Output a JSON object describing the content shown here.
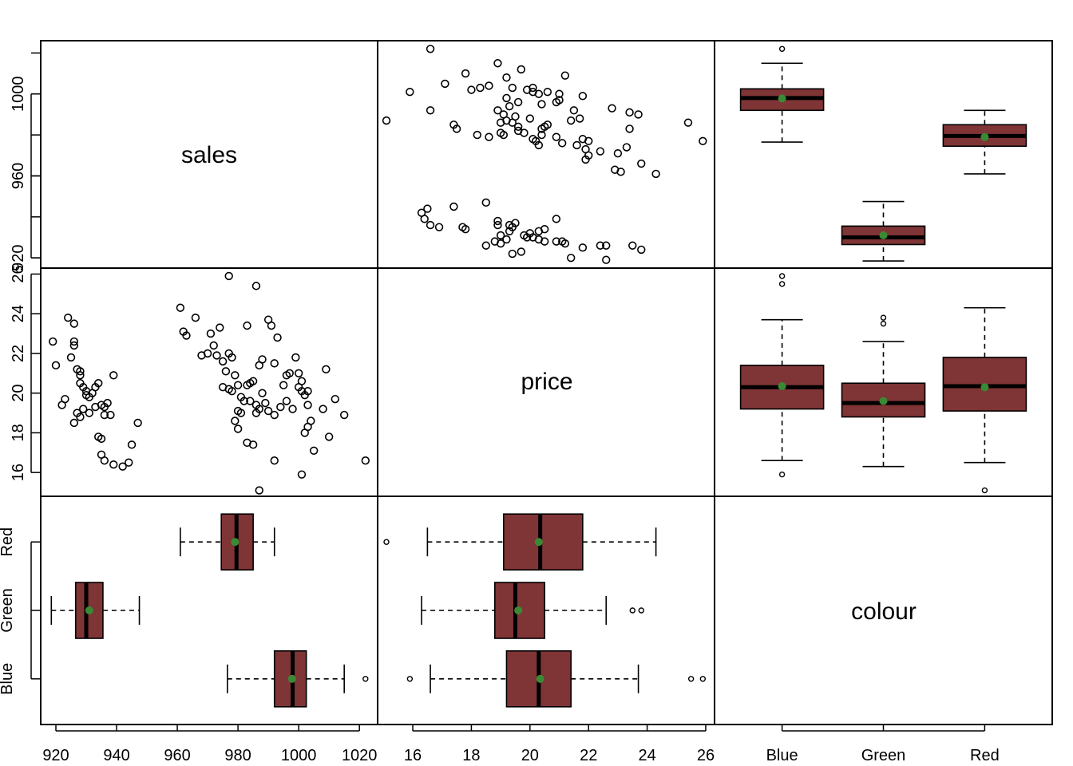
{
  "chart_data": {
    "type": "scatter",
    "variables": [
      "sales",
      "price",
      "colour"
    ],
    "categories": [
      "Blue",
      "Green",
      "Red"
    ],
    "colors": {
      "box_fill": "#7f3436",
      "mean_point": "#3a8a34",
      "points": "#000000"
    },
    "axes": {
      "sales": {
        "range": [
          915,
          1026
        ],
        "ticks": [
          920,
          940,
          960,
          980,
          1000,
          1020
        ],
        "alt_ticks": [
          920,
          960,
          1000
        ]
      },
      "price": {
        "range": [
          14.8,
          26.3
        ],
        "ticks": [
          16,
          18,
          20,
          22,
          24,
          26
        ]
      }
    },
    "boxplots": {
      "sales": [
        {
          "group": "Blue",
          "whisker_low": 976.5,
          "q1": 992,
          "median": 998,
          "q3": 1002.5,
          "whisker_high": 1015,
          "mean": 997.8,
          "outliers": [
            1022
          ]
        },
        {
          "group": "Green",
          "whisker_low": 918.5,
          "q1": 926.5,
          "median": 930,
          "q3": 935.5,
          "whisker_high": 947.5,
          "mean": 931,
          "outliers": []
        },
        {
          "group": "Red",
          "whisker_low": 961,
          "q1": 974.5,
          "median": 979.5,
          "q3": 985,
          "whisker_high": 992,
          "mean": 979,
          "outliers": []
        }
      ],
      "price": [
        {
          "group": "Blue",
          "whisker_low": 16.6,
          "q1": 19.2,
          "median": 20.3,
          "q3": 21.4,
          "whisker_high": 23.7,
          "mean": 20.35,
          "outliers": [
            15.9,
            25.5,
            25.9
          ]
        },
        {
          "group": "Green",
          "whisker_low": 16.3,
          "q1": 18.8,
          "median": 19.5,
          "q3": 20.5,
          "whisker_high": 22.6,
          "mean": 19.6,
          "outliers": [
            23.5,
            23.8
          ]
        },
        {
          "group": "Red",
          "whisker_low": 16.5,
          "q1": 19.1,
          "median": 20.35,
          "q3": 21.8,
          "whisker_high": 24.3,
          "mean": 20.3,
          "outliers": [
            15.1
          ]
        }
      ]
    },
    "scatter_points": [
      {
        "sales": 1022,
        "price": 16.6
      },
      {
        "sales": 1001,
        "price": 15.9
      },
      {
        "sales": 1005,
        "price": 17.1
      },
      {
        "sales": 1012,
        "price": 19.7
      },
      {
        "sales": 1015,
        "price": 18.9
      },
      {
        "sales": 1009,
        "price": 21.2
      },
      {
        "sales": 1010,
        "price": 17.8
      },
      {
        "sales": 1008,
        "price": 19.2
      },
      {
        "sales": 1003,
        "price": 19.4
      },
      {
        "sales": 1004,
        "price": 18.6
      },
      {
        "sales": 986,
        "price": 25.4
      },
      {
        "sales": 977,
        "price": 25.9
      },
      {
        "sales": 997,
        "price": 21.0
      },
      {
        "sales": 999,
        "price": 21.8
      },
      {
        "sales": 996,
        "price": 20.9
      },
      {
        "sales": 993,
        "price": 22.8
      },
      {
        "sales": 991,
        "price": 23.4
      },
      {
        "sales": 990,
        "price": 23.7
      },
      {
        "sales": 992,
        "price": 21.5
      },
      {
        "sales": 995,
        "price": 20.4
      },
      {
        "sales": 1000,
        "price": 20.3
      },
      {
        "sales": 1001,
        "price": 20.1
      },
      {
        "sales": 1002,
        "price": 19.9
      },
      {
        "sales": 998,
        "price": 19.2
      },
      {
        "sales": 996,
        "price": 19.6
      },
      {
        "sales": 994,
        "price": 19.3
      },
      {
        "sales": 992,
        "price": 18.9
      },
      {
        "sales": 1002,
        "price": 18.0
      },
      {
        "sales": 1003,
        "price": 18.3
      },
      {
        "sales": 988,
        "price": 21.7
      },
      {
        "sales": 987,
        "price": 21.4
      },
      {
        "sales": 985,
        "price": 20.6
      },
      {
        "sales": 984,
        "price": 20.5
      },
      {
        "sales": 983,
        "price": 20.4
      },
      {
        "sales": 988,
        "price": 20.0
      },
      {
        "sales": 989,
        "price": 19.5
      },
      {
        "sales": 986,
        "price": 19.4
      },
      {
        "sales": 984,
        "price": 19.6
      },
      {
        "sales": 981,
        "price": 19.8
      },
      {
        "sales": 979,
        "price": 18.6
      },
      {
        "sales": 980,
        "price": 18.2
      },
      {
        "sales": 983,
        "price": 17.5
      },
      {
        "sales": 985,
        "price": 17.4
      },
      {
        "sales": 987,
        "price": 15.1
      },
      {
        "sales": 992,
        "price": 16.6
      },
      {
        "sales": 1000,
        "price": 21.0
      },
      {
        "sales": 1001,
        "price": 20.6
      },
      {
        "sales": 1003,
        "price": 20.1
      },
      {
        "sales": 961,
        "price": 24.3
      },
      {
        "sales": 962,
        "price": 23.1
      },
      {
        "sales": 966,
        "price": 23.8
      },
      {
        "sales": 963,
        "price": 22.9
      },
      {
        "sales": 970,
        "price": 22.0
      },
      {
        "sales": 972,
        "price": 22.4
      },
      {
        "sales": 973,
        "price": 21.9
      },
      {
        "sales": 974,
        "price": 23.3
      },
      {
        "sales": 975,
        "price": 21.6
      },
      {
        "sales": 976,
        "price": 21.1
      },
      {
        "sales": 977,
        "price": 22.0
      },
      {
        "sales": 978,
        "price": 21.8
      },
      {
        "sales": 979,
        "price": 20.9
      },
      {
        "sales": 980,
        "price": 20.4
      },
      {
        "sales": 975,
        "price": 20.3
      },
      {
        "sales": 977,
        "price": 20.2
      },
      {
        "sales": 982,
        "price": 19.6
      },
      {
        "sales": 983,
        "price": 23.4
      },
      {
        "sales": 968,
        "price": 21.9
      },
      {
        "sales": 971,
        "price": 23.0
      },
      {
        "sales": 978,
        "price": 20.1
      },
      {
        "sales": 980,
        "price": 19.1
      },
      {
        "sales": 981,
        "price": 19.0
      },
      {
        "sales": 986,
        "price": 19.0
      },
      {
        "sales": 987,
        "price": 19.2
      },
      {
        "sales": 990,
        "price": 19.1
      },
      {
        "sales": 919,
        "price": 22.6
      },
      {
        "sales": 920,
        "price": 21.4
      },
      {
        "sales": 922,
        "price": 19.4
      },
      {
        "sales": 923,
        "price": 19.7
      },
      {
        "sales": 924,
        "price": 23.8
      },
      {
        "sales": 925,
        "price": 21.8
      },
      {
        "sales": 926,
        "price": 23.5
      },
      {
        "sales": 926,
        "price": 22.4
      },
      {
        "sales": 926,
        "price": 22.6
      },
      {
        "sales": 927,
        "price": 21.2
      },
      {
        "sales": 928,
        "price": 20.9
      },
      {
        "sales": 928,
        "price": 21.1
      },
      {
        "sales": 928,
        "price": 20.5
      },
      {
        "sales": 929,
        "price": 20.3
      },
      {
        "sales": 930,
        "price": 20.1
      },
      {
        "sales": 930,
        "price": 19.9
      },
      {
        "sales": 931,
        "price": 19.8
      },
      {
        "sales": 932,
        "price": 20.0
      },
      {
        "sales": 933,
        "price": 20.3
      },
      {
        "sales": 934,
        "price": 20.5
      },
      {
        "sales": 927,
        "price": 19.0
      },
      {
        "sales": 928,
        "price": 18.8
      },
      {
        "sales": 926,
        "price": 18.5
      },
      {
        "sales": 929,
        "price": 19.2
      },
      {
        "sales": 931,
        "price": 19.0
      },
      {
        "sales": 933,
        "price": 19.3
      },
      {
        "sales": 935,
        "price": 19.4
      },
      {
        "sales": 936,
        "price": 19.3
      },
      {
        "sales": 937,
        "price": 19.5
      },
      {
        "sales": 938,
        "price": 18.9
      },
      {
        "sales": 936,
        "price": 18.9
      },
      {
        "sales": 934,
        "price": 17.8
      },
      {
        "sales": 935,
        "price": 17.7
      },
      {
        "sales": 935,
        "price": 16.9
      },
      {
        "sales": 936,
        "price": 16.6
      },
      {
        "sales": 939,
        "price": 16.4
      },
      {
        "sales": 942,
        "price": 16.3
      },
      {
        "sales": 944,
        "price": 16.5
      },
      {
        "sales": 945,
        "price": 17.4
      },
      {
        "sales": 947,
        "price": 18.5
      },
      {
        "sales": 939,
        "price": 20.9
      }
    ],
    "title": "",
    "xlabel": "",
    "ylabel": "",
    "grid": false,
    "legend": "none"
  }
}
